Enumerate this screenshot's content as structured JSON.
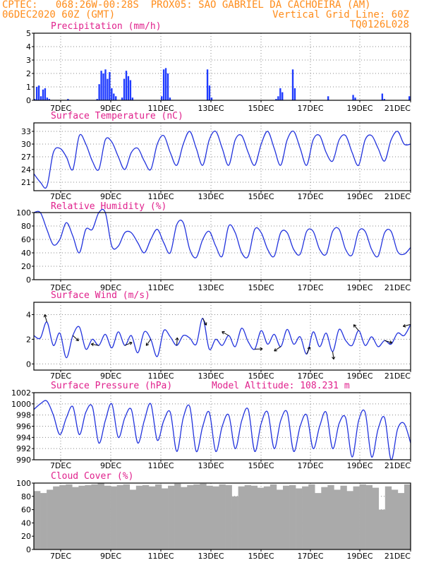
{
  "header": {
    "line1": "CPTEC:   068:26W-00:28S  PROX05: SAO GABRIEL DA CACHOEIRA (AM)",
    "line2_left": "06DEC2020 60Z (GMT)",
    "line2_right": "Vertical Grid Line: 60Z",
    "line3_right": "TQ0126L028"
  },
  "colors": {
    "line": "#2233dd",
    "bar": "#1f3bff",
    "cloud": "#aaaaaa",
    "title": "#e0208c",
    "header": "#ff8c1a"
  },
  "x_ticks": [
    "7DEC",
    "9DEC",
    "11DEC",
    "13DEC",
    "15DEC",
    "17DEC",
    "19DEC",
    "21DEC"
  ],
  "chart_data": [
    {
      "type": "bar",
      "title": "Precipitation (mm/h)",
      "ylim": [
        0,
        5
      ],
      "yticks": [
        "0",
        "1",
        "2",
        "3",
        "4",
        "5"
      ],
      "x_start": "06DEC 18Z",
      "x_end": "21DEC 00Z",
      "step_hours": 3,
      "values": [
        0.1,
        1.0,
        1.1,
        0.3,
        0.8,
        0.9,
        0.2,
        0.1,
        0,
        0,
        0,
        0,
        0,
        0,
        0,
        0,
        0.1,
        0,
        0,
        0,
        0,
        0,
        0,
        0,
        0,
        0,
        0,
        0,
        0,
        0,
        0.1,
        1.2,
        2.2,
        2.0,
        2.3,
        1.6,
        2.1,
        0.9,
        0.5,
        0.3,
        0,
        0,
        0.2,
        1.6,
        2.2,
        1.8,
        1.5,
        0.2,
        0,
        0,
        0,
        0,
        0,
        0,
        0,
        0,
        0,
        0,
        0,
        0,
        0,
        0.3,
        2.3,
        2.4,
        2.0,
        0.2,
        0,
        0,
        0,
        0,
        0,
        0,
        0,
        0,
        0,
        0,
        0,
        0,
        0,
        0,
        0,
        0,
        0,
        2.3,
        1.1,
        0.2,
        0,
        0,
        0,
        0,
        0,
        0,
        0,
        0,
        0,
        0,
        0,
        0,
        0,
        0,
        0,
        0,
        0,
        0,
        0,
        0,
        0,
        0,
        0,
        0,
        0,
        0,
        0,
        0,
        0,
        0,
        0.1,
        0.3,
        0.9,
        0.6,
        0,
        0,
        0,
        0,
        2.3,
        0.9,
        0,
        0,
        0,
        0,
        0,
        0,
        0,
        0,
        0,
        0,
        0,
        0,
        0,
        0,
        0,
        0.3,
        0,
        0,
        0,
        0,
        0,
        0,
        0,
        0,
        0,
        0,
        0,
        0.4,
        0.2,
        0,
        0,
        0,
        0,
        0,
        0,
        0,
        0,
        0,
        0,
        0,
        0,
        0.5,
        0.1,
        0,
        0,
        0,
        0,
        0,
        0,
        0,
        0,
        0,
        0,
        0,
        0.3
      ]
    },
    {
      "type": "line",
      "title": "Surface Temperature (nC)",
      "ylim": [
        19,
        35
      ],
      "yticks": [
        "21",
        "24",
        "27",
        "30",
        "33"
      ],
      "x": [
        "06DEC 12Z",
        "06DEC 18Z",
        "07DEC 00Z",
        "07DEC 06Z",
        "07DEC 12Z",
        "07DEC 18Z",
        "08DEC 00Z",
        "08DEC 06Z",
        "08DEC 12Z",
        "08DEC 18Z",
        "09DEC 00Z",
        "09DEC 06Z",
        "09DEC 12Z",
        "09DEC 18Z",
        "10DEC 00Z",
        "10DEC 06Z",
        "10DEC 12Z",
        "10DEC 18Z",
        "11DEC 00Z",
        "11DEC 06Z",
        "11DEC 12Z",
        "11DEC 18Z",
        "12DEC 00Z",
        "12DEC 06Z",
        "12DEC 12Z",
        "12DEC 18Z",
        "13DEC 00Z",
        "13DEC 06Z",
        "13DEC 12Z",
        "13DEC 18Z",
        "14DEC 00Z",
        "14DEC 06Z",
        "14DEC 12Z",
        "14DEC 18Z",
        "15DEC 00Z",
        "15DEC 06Z",
        "15DEC 12Z",
        "15DEC 18Z",
        "16DEC 00Z",
        "16DEC 06Z",
        "16DEC 12Z",
        "16DEC 18Z",
        "17DEC 00Z",
        "17DEC 06Z",
        "17DEC 12Z",
        "17DEC 18Z",
        "18DEC 00Z",
        "18DEC 06Z",
        "18DEC 12Z",
        "18DEC 18Z",
        "19DEC 00Z",
        "19DEC 06Z",
        "19DEC 12Z",
        "19DEC 18Z",
        "20DEC 00Z",
        "20DEC 06Z",
        "20DEC 12Z",
        "20DEC 18Z",
        "21DEC 00Z"
      ],
      "values": [
        23,
        21,
        20,
        28,
        29,
        27,
        24,
        32,
        30,
        26,
        24,
        31,
        30.5,
        27,
        24,
        28,
        29,
        26,
        24,
        30,
        32,
        28,
        25,
        30,
        33,
        29,
        25,
        31,
        33,
        29,
        25,
        31,
        32,
        28,
        25,
        30,
        33,
        29,
        25,
        31,
        33,
        29,
        25,
        31,
        32,
        28,
        26,
        31,
        32,
        28,
        25,
        31,
        32,
        29,
        26,
        31,
        33,
        30,
        30
      ]
    },
    {
      "type": "line",
      "title": "Relative Humidity (%)",
      "ylim": [
        0,
        100
      ],
      "yticks": [
        "0",
        "20",
        "40",
        "60",
        "80",
        "100"
      ],
      "x_start": "06DEC 12Z",
      "x_end": "21DEC 00Z",
      "step_hours": 6,
      "values": [
        100,
        100,
        75,
        52,
        60,
        85,
        65,
        40,
        75,
        75,
        100,
        100,
        50,
        50,
        70,
        70,
        55,
        40,
        60,
        75,
        55,
        40,
        82,
        85,
        45,
        33,
        60,
        72,
        50,
        35,
        80,
        70,
        40,
        35,
        75,
        70,
        45,
        35,
        70,
        70,
        45,
        38,
        72,
        72,
        45,
        38,
        72,
        75,
        45,
        37,
        72,
        72,
        45,
        35,
        70,
        72,
        42,
        38,
        48
      ]
    },
    {
      "type": "line",
      "title": "Surface Wind (m/s)",
      "ylim": [
        -0.5,
        5
      ],
      "yticks": [
        "0",
        "2",
        "4"
      ],
      "x_start": "06DEC 12Z",
      "x_end": "21DEC 00Z",
      "step_hours": 6,
      "values": [
        2.3,
        2.1,
        3.4,
        1.5,
        2.5,
        0.5,
        2.3,
        3,
        1.2,
        2,
        1.5,
        2.4,
        1.3,
        2.6,
        1.5,
        2.3,
        0.9,
        2.6,
        2,
        0.6,
        2.7,
        2.2,
        1.5,
        2.3,
        2.1,
        1.6,
        3.7,
        1.2,
        2,
        1.5,
        2.3,
        1.4,
        2.9,
        1.8,
        1.2,
        2.7,
        1.6,
        2.4,
        1.4,
        2.8,
        1.6,
        2.2,
        0.8,
        2.6,
        1.4,
        2.5,
        1,
        2.8,
        1.9,
        1.5,
        2.7,
        1.5,
        2.2,
        1.4,
        1.9,
        1.6,
        2.5,
        2.3,
        3.2
      ]
    },
    {
      "type": "line",
      "title": "Surface Pressure (hPa)",
      "annotation": "Model Altitude: 108.231 m",
      "ylim": [
        990,
        1002
      ],
      "yticks": [
        "990",
        "992",
        "994",
        "996",
        "998",
        "1000",
        "1002"
      ],
      "x_start": "06DEC 12Z",
      "x_end": "21DEC 00Z",
      "step_hours": 6,
      "values": [
        999,
        1000,
        1000.5,
        998,
        994.5,
        997.5,
        999.5,
        994.5,
        998.5,
        999.5,
        993,
        997,
        1000,
        994,
        997.5,
        999,
        993,
        997,
        1000,
        993.5,
        997,
        998.5,
        991.5,
        997.5,
        999.5,
        991.5,
        996,
        998.5,
        991.5,
        996,
        998,
        992,
        997,
        999,
        991.5,
        996.5,
        998.5,
        992,
        997,
        998.5,
        991.5,
        996,
        998,
        992,
        996,
        998.5,
        992,
        996.5,
        997.5,
        990.5,
        997,
        998.5,
        990.5,
        995.5,
        997.5,
        990,
        995.5,
        996.5,
        993
      ]
    },
    {
      "type": "area",
      "title": "Cloud Cover (%)",
      "ylim": [
        0,
        100
      ],
      "yticks": [
        "0",
        "20",
        "40",
        "60",
        "80",
        "100"
      ],
      "x_start": "06DEC 12Z",
      "x_end": "21DEC 00Z",
      "step_hours": 6,
      "values": [
        88,
        85,
        90,
        95,
        97,
        98,
        94,
        96,
        97,
        98,
        100,
        96,
        95,
        97,
        98,
        90,
        96,
        97,
        95,
        98,
        92,
        96,
        99,
        94,
        97,
        98,
        99,
        96,
        95,
        98,
        97,
        80,
        95,
        97,
        96,
        93,
        95,
        98,
        90,
        96,
        97,
        92,
        95,
        98,
        85,
        94,
        97,
        90,
        96,
        88,
        95,
        98,
        97,
        93,
        60,
        95,
        90,
        85,
        98
      ]
    }
  ]
}
